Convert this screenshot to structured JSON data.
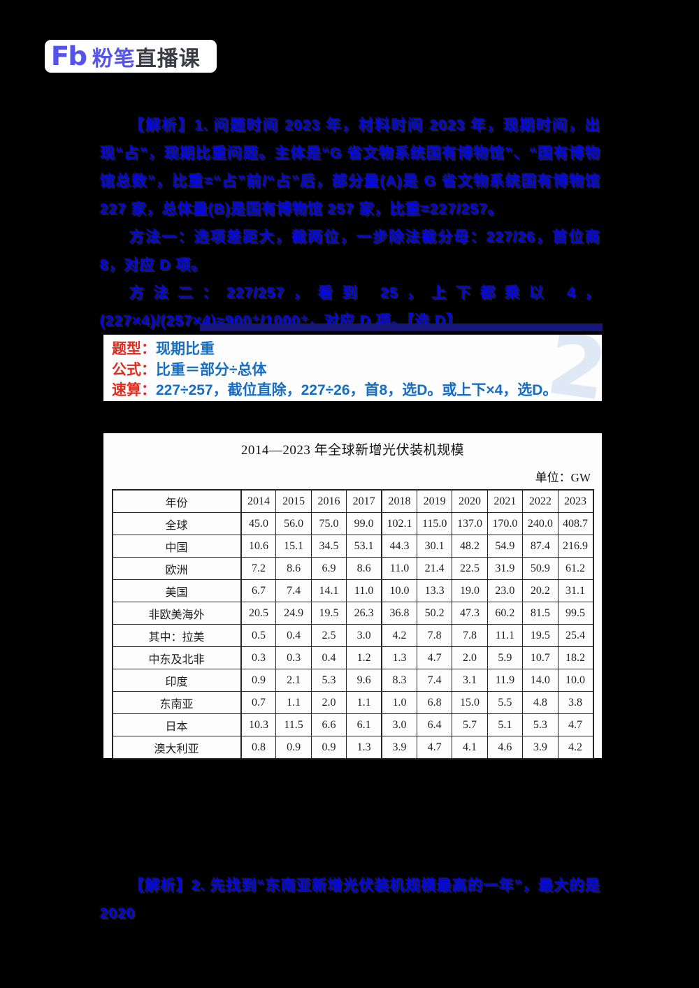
{
  "logo": {
    "mark": "Fb",
    "brand": "粉笔",
    "suffix": "直播课",
    "brand_color": "#5553ee",
    "suffix_color": "#3c3c46"
  },
  "analysis_q1": {
    "para1": "【解析】1. 问题时间 2023 年，材料时间 2023 年，现期时间，出现“占”，现期比重问题。主体是“G 省文物系统国有博物馆”、“国有博物馆总数”，比重=“占”前/“占”后，部分量(A)是 G 省文物系统国有博物馆 227 家，总体量(B)是国有博物馆 257 家，比重=227/257。",
    "para2": "方法一：选项差距大，截两位，一步除法截分母：227/26，首位商 8，对应 D 项。",
    "para3": "方法二：227/257，看到 25，上下都乘以 4，(227×4)/(257×4)≈900⁺/1000⁺，对应 D 项。【选 D】",
    "text_color": "#0406ee"
  },
  "summary_box": {
    "rows": [
      {
        "label": "题型：",
        "value": "现期比重"
      },
      {
        "label": "公式：",
        "value": "比重＝部分÷总体"
      },
      {
        "label": "速算：",
        "value": "227÷257，截位直除，227÷26，首8，选D。或上下×4，选D。"
      }
    ],
    "label_color": "#e02b1e",
    "value_color": "#176dc2",
    "watermark": "2"
  },
  "table_card": {
    "title": "2014—2023 年全球新增光伏装机规模",
    "unit": "单位：GW",
    "header": [
      "年份",
      "2014",
      "2015",
      "2016",
      "2017",
      "2018",
      "2019",
      "2020",
      "2021",
      "2022",
      "2023"
    ],
    "rows": [
      {
        "label": "全球",
        "indent": 1,
        "values": [
          "45.0",
          "56.0",
          "75.0",
          "99.0",
          "102.1",
          "115.0",
          "137.0",
          "170.0",
          "240.0",
          "408.7"
        ]
      },
      {
        "label": "中国",
        "indent": 2,
        "values": [
          "10.6",
          "15.1",
          "34.5",
          "53.1",
          "44.3",
          "30.1",
          "48.2",
          "54.9",
          "87.4",
          "216.9"
        ]
      },
      {
        "label": "欧洲",
        "indent": 2,
        "values": [
          "7.2",
          "8.6",
          "6.9",
          "8.6",
          "11.0",
          "21.4",
          "22.5",
          "31.9",
          "50.9",
          "61.2"
        ]
      },
      {
        "label": "美国",
        "indent": 2,
        "values": [
          "6.7",
          "7.4",
          "14.1",
          "11.0",
          "10.0",
          "13.3",
          "19.0",
          "23.0",
          "20.2",
          "31.1"
        ]
      },
      {
        "label": "非欧美海外",
        "indent": 2,
        "values": [
          "20.5",
          "24.9",
          "19.5",
          "26.3",
          "36.8",
          "50.2",
          "47.3",
          "60.2",
          "81.5",
          "99.5"
        ]
      },
      {
        "label": "其中：拉美",
        "indent": 3,
        "values": [
          "0.5",
          "0.4",
          "2.5",
          "3.0",
          "4.2",
          "7.8",
          "7.8",
          "11.1",
          "19.5",
          "25.4"
        ]
      },
      {
        "label": "中东及北非",
        "indent": 0,
        "values": [
          "0.3",
          "0.3",
          "0.4",
          "1.2",
          "1.3",
          "4.7",
          "2.0",
          "5.9",
          "10.7",
          "18.2"
        ]
      },
      {
        "label": "印度",
        "indent": 0,
        "values": [
          "0.9",
          "2.1",
          "5.3",
          "9.6",
          "8.3",
          "7.4",
          "3.1",
          "11.9",
          "14.0",
          "10.0"
        ]
      },
      {
        "label": "东南亚",
        "indent": 0,
        "values": [
          "0.7",
          "1.1",
          "2.0",
          "1.1",
          "1.0",
          "6.8",
          "15.0",
          "5.5",
          "4.8",
          "3.8"
        ]
      },
      {
        "label": "日本",
        "indent": 0,
        "values": [
          "10.3",
          "11.5",
          "6.6",
          "6.1",
          "3.0",
          "6.4",
          "5.7",
          "5.1",
          "5.3",
          "4.7"
        ]
      },
      {
        "label": "澳大利亚",
        "indent": 0,
        "values": [
          "0.8",
          "0.9",
          "0.9",
          "1.3",
          "3.9",
          "4.7",
          "4.1",
          "4.6",
          "3.9",
          "4.2"
        ]
      }
    ]
  },
  "analysis_q2": {
    "para1": "【解析】2. 先找到“东南亚新增光伏装机规模最高的一年”，最大的是 2020"
  }
}
